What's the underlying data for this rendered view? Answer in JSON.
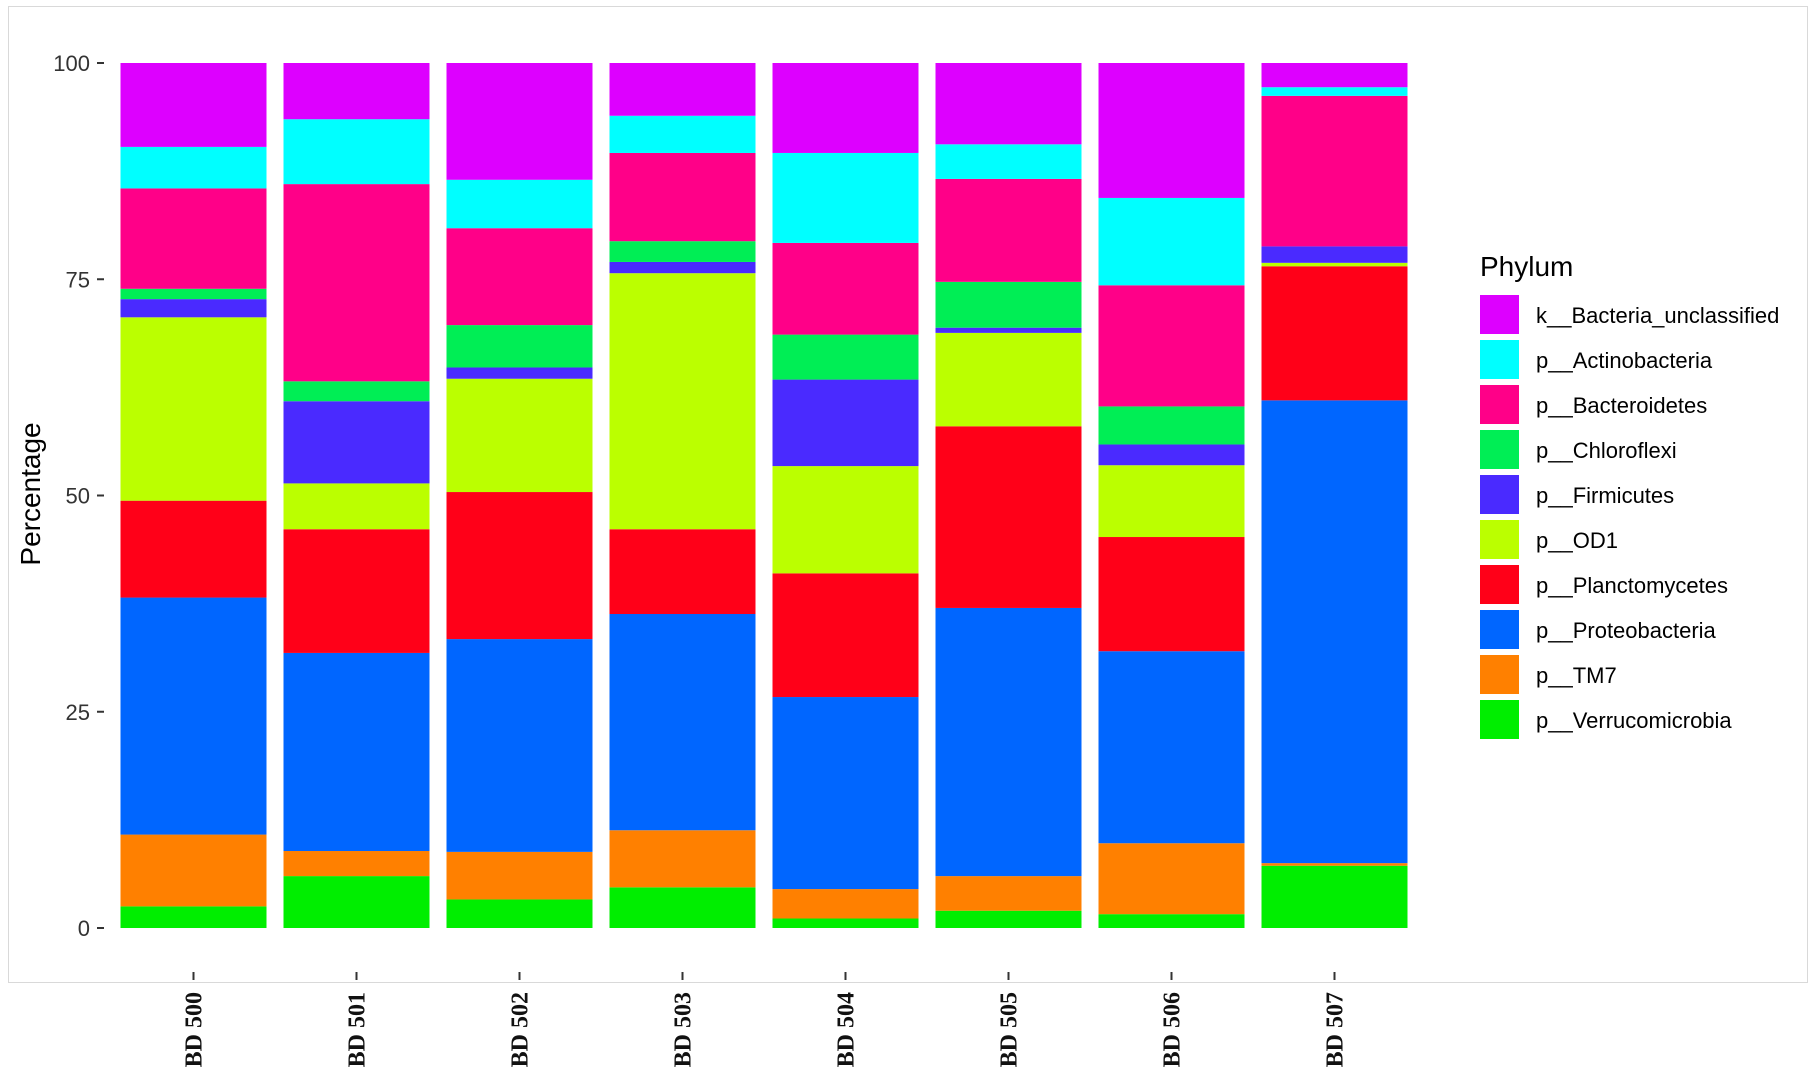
{
  "chart_data": {
    "type": "bar",
    "stacked": true,
    "ylabel": "Percentage",
    "xlabel": "",
    "ylim": [
      0,
      100
    ],
    "yticks": [
      "0",
      "25",
      "50",
      "75",
      "100"
    ],
    "categories": [
      "BD 500",
      "BD 501",
      "BD 502",
      "BD 503",
      "BD 504",
      "BD 505",
      "BD 506",
      "BD 507"
    ],
    "legend": {
      "title": "Phylum",
      "position": "right"
    },
    "grid": false,
    "series": [
      {
        "name": "p__Verrucomicrobia",
        "color": "#00ee00",
        "values": [
          2.5,
          6.0,
          3.3,
          4.7,
          1.1,
          2.0,
          1.6,
          7.2
        ]
      },
      {
        "name": "p__TM7",
        "color": "#ff8000",
        "values": [
          8.3,
          2.9,
          5.5,
          6.6,
          3.4,
          4.0,
          8.2,
          0.3
        ]
      },
      {
        "name": "p__Proteobacteria",
        "color": "#0066ff",
        "values": [
          27.4,
          22.9,
          24.6,
          25.0,
          22.2,
          31.0,
          22.2,
          53.5
        ]
      },
      {
        "name": "p__Planctomycetes",
        "color": "#ff0018",
        "values": [
          11.2,
          14.3,
          17.0,
          9.8,
          14.3,
          21.0,
          13.2,
          15.5
        ]
      },
      {
        "name": "p__OD1",
        "color": "#bbff00",
        "values": [
          21.2,
          5.3,
          13.1,
          29.6,
          12.4,
          10.8,
          8.3,
          0.4
        ]
      },
      {
        "name": "p__Firmicutes",
        "color": "#4a2aff",
        "values": [
          2.1,
          9.5,
          1.3,
          1.3,
          10.0,
          0.6,
          2.4,
          1.9
        ]
      },
      {
        "name": "p__Chloroflexi",
        "color": "#00ee55",
        "values": [
          1.2,
          2.3,
          4.9,
          2.4,
          5.2,
          5.3,
          4.4,
          0.0
        ]
      },
      {
        "name": "p__Bacteroidetes",
        "color": "#ff0088",
        "values": [
          11.6,
          22.8,
          11.2,
          10.2,
          10.6,
          11.9,
          14.0,
          17.4
        ]
      },
      {
        "name": "p__Actinobacteria",
        "color": "#00ffff",
        "values": [
          4.8,
          7.5,
          5.6,
          4.3,
          10.4,
          4.0,
          10.1,
          1.0
        ]
      },
      {
        "name": "k__Bacteria_unclassified",
        "color": "#dd00ff",
        "values": [
          9.7,
          6.5,
          13.5,
          6.1,
          10.4,
          9.4,
          15.6,
          2.8
        ]
      }
    ]
  }
}
